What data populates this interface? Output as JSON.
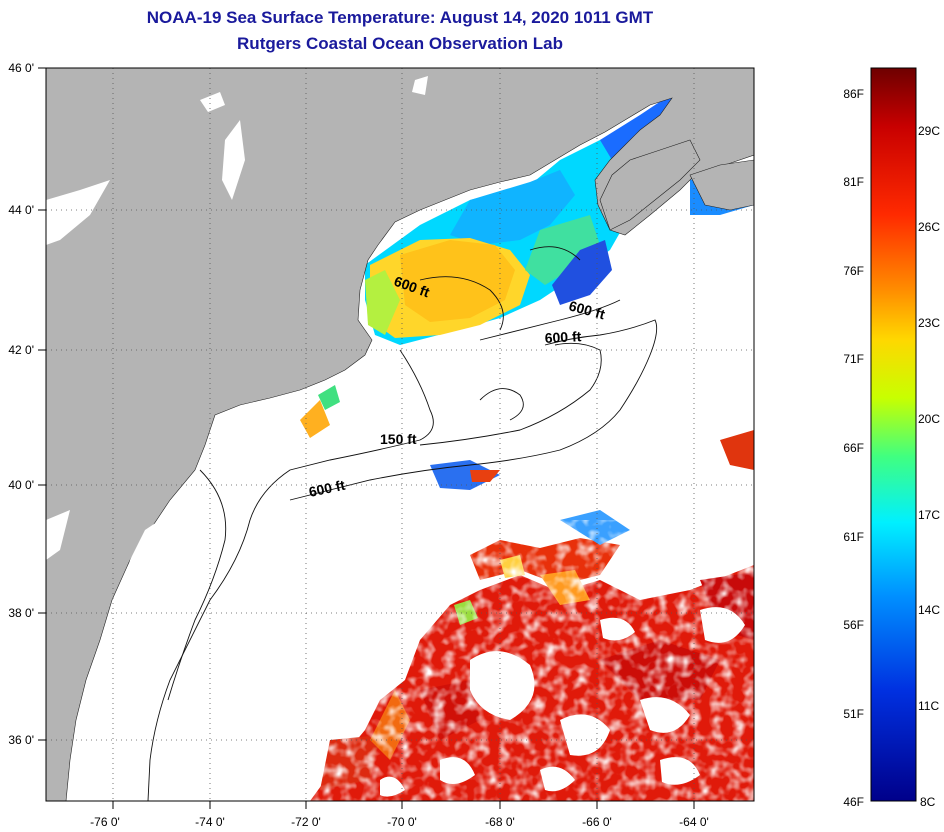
{
  "header": {
    "title": "NOAA-19 Sea Surface Temperature:  August 14, 2020 1011 GMT",
    "subtitle": "Rutgers Coastal Ocean Observation Lab"
  },
  "map": {
    "lat_labels": [
      "46 0'",
      "44 0'",
      "42 0'",
      "40 0'",
      "38 0'",
      "36 0'"
    ],
    "lon_labels": [
      "-76 0'",
      "-74 0'",
      "-72 0'",
      "-70 0'",
      "-68 0'",
      "-66 0'",
      "-64 0'"
    ],
    "contour_labels": [
      "600 ft",
      "600 ft",
      "600 ft",
      "150 ft",
      "600 ft"
    ],
    "colors": {
      "land": "#b4b4b4",
      "ocean": "#ffffff",
      "grid": "#555555"
    }
  },
  "colorbar": {
    "f_labels": [
      "86F",
      "81F",
      "76F",
      "71F",
      "66F",
      "61F",
      "56F",
      "51F",
      "46F"
    ],
    "c_labels": [
      "29C",
      "26C",
      "23C",
      "20C",
      "17C",
      "14C",
      "11C",
      "8C"
    ],
    "stops": [
      "#6e0000",
      "#c80000",
      "#ff2a00",
      "#ff8a00",
      "#ffd700",
      "#c8ff00",
      "#40ff80",
      "#00f0ff",
      "#0090ff",
      "#0030e0",
      "#00008a"
    ]
  }
}
